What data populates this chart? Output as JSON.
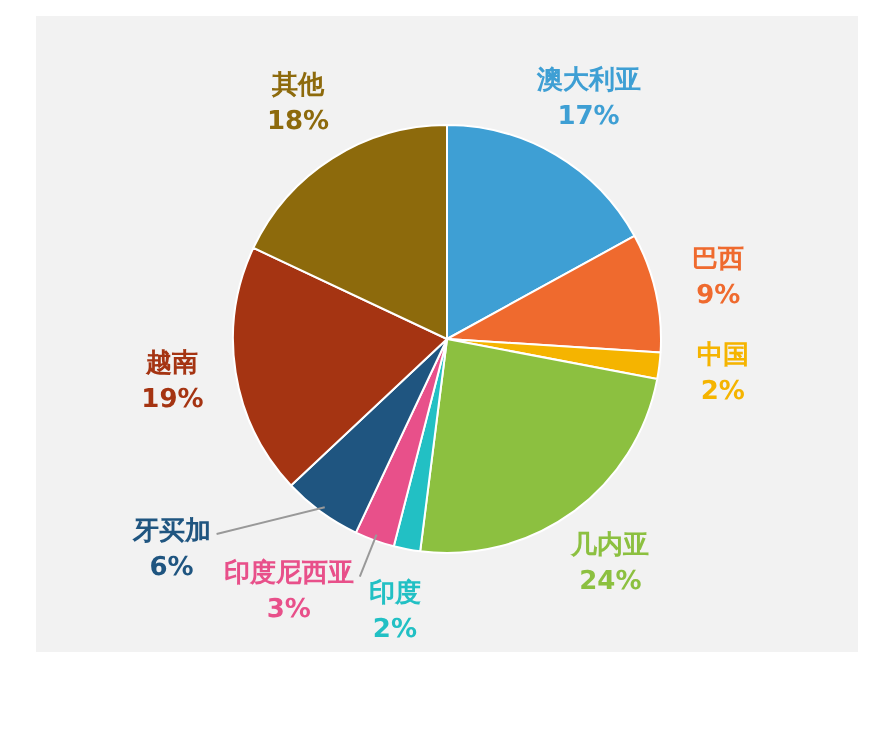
{
  "chart_data": {
    "type": "pie",
    "categories": [
      "澳大利亚",
      "巴西",
      "中国",
      "几内亚",
      "印度",
      "印度尼西亚",
      "牙买加",
      "越南",
      "其他"
    ],
    "values": [
      17,
      9,
      2,
      24,
      2,
      3,
      6,
      19,
      18
    ],
    "value_labels": [
      "17%",
      "9%",
      "2%",
      "24%",
      "2%",
      "3%",
      "6%",
      "19%",
      "18%"
    ],
    "colors": [
      "#3e9fd4",
      "#ef6a2e",
      "#f5b400",
      "#8cc040",
      "#22c0c4",
      "#e8508a",
      "#1f5580",
      "#a53412",
      "#8d6a0c"
    ],
    "legend": false
  }
}
